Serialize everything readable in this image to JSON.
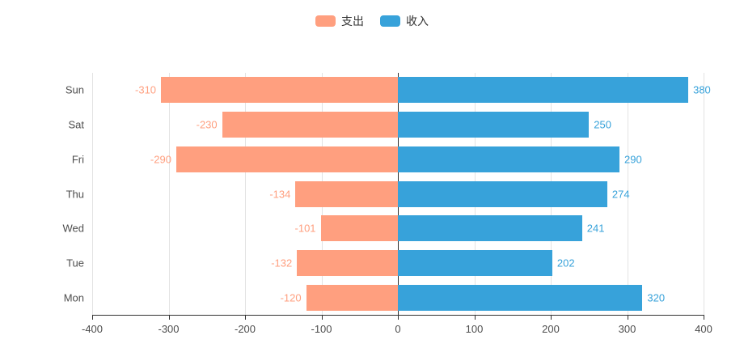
{
  "chart_data": {
    "type": "bar",
    "orientation": "horizontal-diverging",
    "categories": [
      "Sun",
      "Sat",
      "Fri",
      "Thu",
      "Wed",
      "Tue",
      "Mon"
    ],
    "series": [
      {
        "name": "支出",
        "semantic": "expense",
        "color": "#FF9F7F",
        "values": [
          -310,
          -230,
          -290,
          -134,
          -101,
          -132,
          -120
        ]
      },
      {
        "name": "收入",
        "semantic": "income",
        "color": "#37A2DA",
        "values": [
          380,
          250,
          290,
          274,
          241,
          202,
          320
        ]
      }
    ],
    "xlim": [
      -400,
      400
    ],
    "x_ticks": [
      -400,
      -300,
      -200,
      -100,
      0,
      100,
      200,
      300,
      400
    ],
    "grid": true,
    "legend_position": "top-center",
    "value_labels": "outside-bar-ends",
    "title": "",
    "xlabel": "",
    "ylabel": ""
  },
  "colors": {
    "expense": "#FF9F7F",
    "income": "#37A2DA",
    "gridline": "#e3e3e3",
    "axis": "#333333",
    "tick_text": "#4d4d4d",
    "background": "#ffffff"
  }
}
